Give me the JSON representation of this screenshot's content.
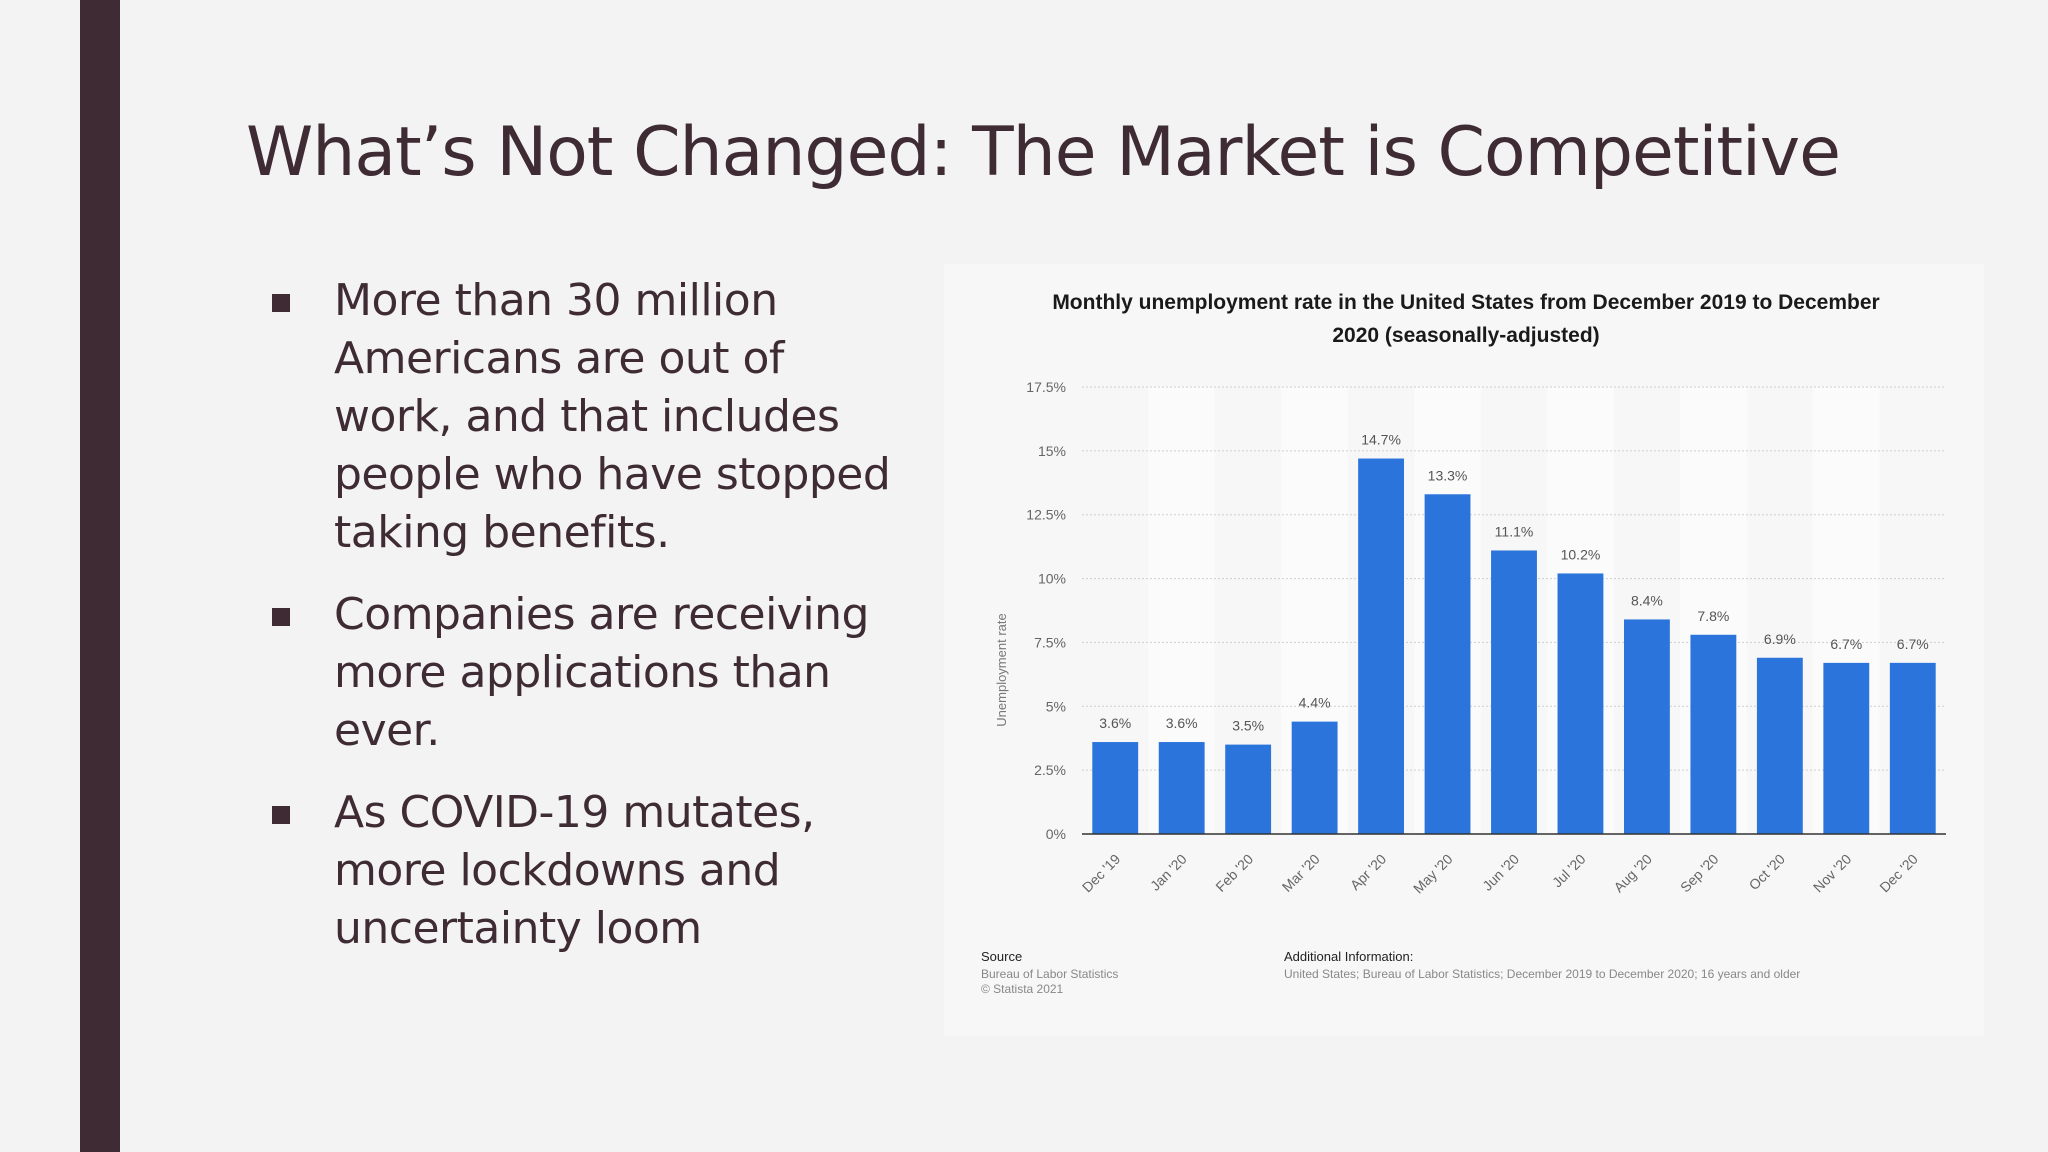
{
  "slide": {
    "title": "What’s Not Changed: The Market is Competitive",
    "bullets": [
      "More than 30 million Americans are out of work, and that includes people who have stopped taking benefits.",
      "Companies are receiving more applications than ever.",
      "As COVID-19 mutates, more lockdowns and uncertainty loom"
    ]
  },
  "colors": {
    "accent": "#3e2b33",
    "bar": "#2a74db",
    "background": "#f3f3f3"
  },
  "chart_data": {
    "type": "bar",
    "title_lines": [
      "Monthly unemployment rate in the United States from December 2019 to December",
      "2020 (seasonally-adjusted)"
    ],
    "ylabel": "Unemployment rate",
    "categories": [
      "Dec '19",
      "Jan '20",
      "Feb '20",
      "Mar '20",
      "Apr '20",
      "May '20",
      "Jun '20",
      "Jul '20",
      "Aug '20",
      "Sep '20",
      "Oct '20",
      "Nov '20",
      "Dec '20"
    ],
    "values": [
      3.6,
      3.6,
      3.5,
      4.4,
      14.7,
      13.3,
      11.1,
      10.2,
      8.4,
      7.8,
      6.9,
      6.7,
      6.7
    ],
    "value_labels": [
      "3.6%",
      "3.6%",
      "3.5%",
      "4.4%",
      "14.7%",
      "13.3%",
      "11.1%",
      "10.2%",
      "8.4%",
      "7.8%",
      "6.9%",
      "6.7%",
      "6.7%"
    ],
    "yticks": [
      0,
      2.5,
      5,
      7.5,
      10,
      12.5,
      15,
      17.5
    ],
    "ytick_labels": [
      "0%",
      "2.5%",
      "5%",
      "7.5%",
      "10%",
      "12.5%",
      "15%",
      "17.5%"
    ],
    "ylim": [
      0,
      17.5
    ],
    "grid": true,
    "source": {
      "heading": "Source",
      "lines": [
        "Bureau of Labor Statistics",
        "© Statista 2021"
      ]
    },
    "additional_info": {
      "heading": "Additional Information:",
      "text": "United States; Bureau of Labor Statistics; December 2019 to December 2020; 16 years and older"
    }
  }
}
